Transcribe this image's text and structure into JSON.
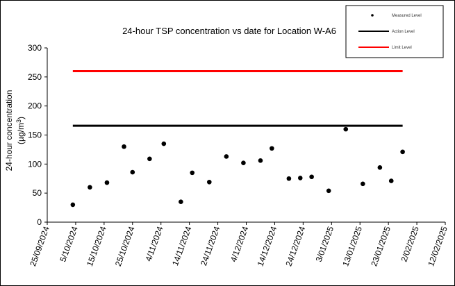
{
  "chart_data": {
    "type": "scatter",
    "title": "24-hour TSP concentration vs date for Location W-A6",
    "ylabel_line1": "24-hour concentration",
    "ylabel_line2_prefix": "(µg/m",
    "ylabel_line2_sup": "3",
    "ylabel_line2_suffix": ")",
    "ylim": [
      0,
      300
    ],
    "yticks": [
      "0",
      "50",
      "100",
      "150",
      "200",
      "250",
      "300"
    ],
    "xlim": [
      "2024-09-25",
      "2025-02-12"
    ],
    "xtick_labels": [
      "25/09/2024",
      "5/10/2024",
      "15/10/2024",
      "25/10/2024",
      "4/11/2024",
      "14/11/2024",
      "24/11/2024",
      "4/12/2024",
      "14/12/2024",
      "24/12/2024",
      "3/01/2025",
      "13/01/2025",
      "23/01/2025",
      "2/02/2025",
      "12/02/2025"
    ],
    "grid": false,
    "legend_position": "top-right",
    "series": [
      {
        "name": "Measured Level",
        "kind": "points",
        "color": "#000000",
        "points": [
          {
            "x": "2024-10-04",
            "y": 30
          },
          {
            "x": "2024-10-10",
            "y": 60
          },
          {
            "x": "2024-10-16",
            "y": 68
          },
          {
            "x": "2024-10-22",
            "y": 130
          },
          {
            "x": "2024-10-25",
            "y": 86
          },
          {
            "x": "2024-10-31",
            "y": 109
          },
          {
            "x": "2024-11-05",
            "y": 135
          },
          {
            "x": "2024-11-11",
            "y": 35
          },
          {
            "x": "2024-11-15",
            "y": 85
          },
          {
            "x": "2024-11-21",
            "y": 69
          },
          {
            "x": "2024-11-27",
            "y": 113
          },
          {
            "x": "2024-12-03",
            "y": 102
          },
          {
            "x": "2024-12-09",
            "y": 106
          },
          {
            "x": "2024-12-13",
            "y": 127
          },
          {
            "x": "2024-12-19",
            "y": 75
          },
          {
            "x": "2024-12-23",
            "y": 76
          },
          {
            "x": "2024-12-27",
            "y": 78
          },
          {
            "x": "2025-01-02",
            "y": 54
          },
          {
            "x": "2025-01-08",
            "y": 160
          },
          {
            "x": "2025-01-14",
            "y": 66
          },
          {
            "x": "2025-01-20",
            "y": 94
          },
          {
            "x": "2025-01-24",
            "y": 71
          },
          {
            "x": "2025-01-28",
            "y": 121
          }
        ]
      },
      {
        "name": "Action Level",
        "kind": "line",
        "color": "#000000",
        "from": "2024-10-04",
        "to": "2025-01-28",
        "y": 166
      },
      {
        "name": "Limit Level",
        "kind": "line",
        "color": "#ff0000",
        "from": "2024-10-04",
        "to": "2025-01-28",
        "y": 260
      }
    ]
  }
}
